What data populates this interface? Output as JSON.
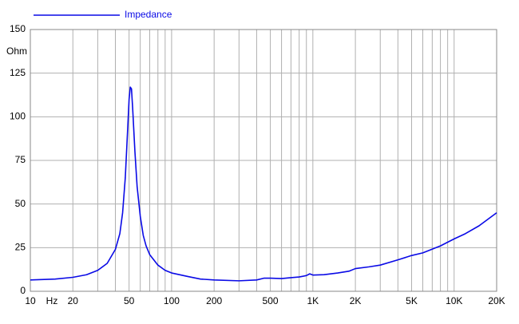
{
  "chart_data": {
    "type": "line",
    "xlabel": "Hz",
    "ylabel": "Ohm",
    "xscale": "log",
    "grid": true,
    "x": [
      10,
      15,
      20,
      25,
      30,
      35,
      40,
      43,
      45,
      47,
      49,
      50,
      51,
      52,
      53,
      55,
      57,
      60,
      63,
      66,
      70,
      80,
      90,
      100,
      130,
      160,
      200,
      300,
      400,
      450,
      500,
      600,
      700,
      800,
      900,
      950,
      1000,
      1200,
      1500,
      1800,
      2000,
      2500,
      3000,
      4000,
      5000,
      6000,
      8000,
      10000,
      12000,
      15000,
      20000
    ],
    "series": [
      {
        "name": "Impedance",
        "color": "#0a0ae6",
        "values": [
          6.5,
          7,
          8,
          9.5,
          12,
          16,
          24,
          33,
          45,
          65,
          95,
          110,
          117,
          116,
          105,
          80,
          60,
          43,
          32,
          26,
          21,
          15,
          12,
          10.5,
          8.5,
          7,
          6.5,
          6,
          6.5,
          7.5,
          7.5,
          7.3,
          7.8,
          8.2,
          9,
          10,
          9.3,
          9.5,
          10.5,
          11.5,
          13,
          14,
          15,
          18,
          20.5,
          22,
          26,
          30,
          33,
          37.5,
          45
        ]
      }
    ],
    "xlim": [
      10,
      20000
    ],
    "ylim": [
      0,
      150
    ],
    "xticks": [
      10,
      20,
      50,
      100,
      200,
      500,
      {
        "value": 1000,
        "label": "1K"
      },
      {
        "value": 2000,
        "label": "2K"
      },
      {
        "value": 5000,
        "label": "5K"
      },
      {
        "value": 10000,
        "label": "10K"
      },
      {
        "value": 20000,
        "label": "20K"
      }
    ],
    "x_minor_ticks": [
      30,
      40,
      60,
      70,
      80,
      90,
      300,
      400,
      600,
      700,
      800,
      900,
      3000,
      4000,
      6000,
      7000,
      8000,
      9000
    ],
    "yticks": [
      0,
      25,
      50,
      75,
      100,
      125,
      150
    ]
  }
}
